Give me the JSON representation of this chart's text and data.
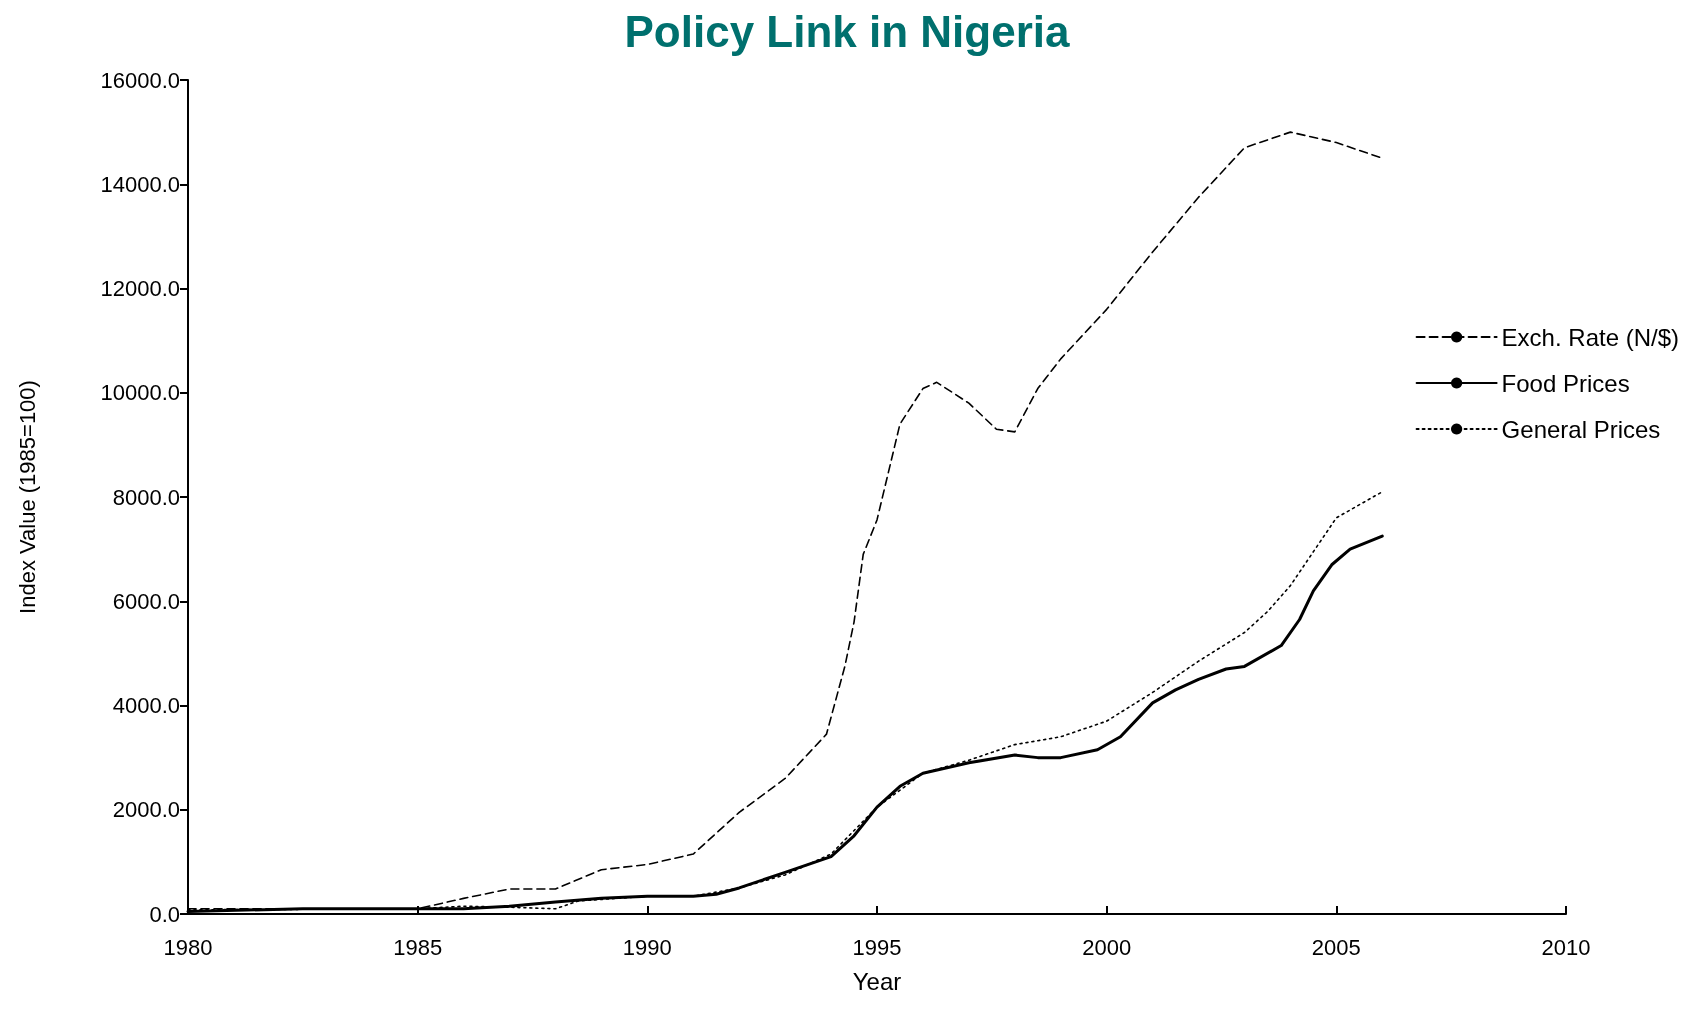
{
  "chart_data": {
    "type": "line",
    "title": "Policy Link in Nigeria",
    "xlabel": "Year",
    "ylabel": "Index Value (1985=100)",
    "xlim": [
      1980,
      2010
    ],
    "xticks": [
      1980,
      1985,
      1990,
      1995,
      2000,
      2005,
      2010
    ],
    "ylim": [
      0,
      16000
    ],
    "yticks": [
      {
        "value": 0,
        "label": "0.0"
      },
      {
        "value": 2000,
        "label": "2000.0"
      },
      {
        "value": 4000,
        "label": "4000.0"
      },
      {
        "value": 6000,
        "label": "6000.0"
      },
      {
        "value": 8000,
        "label": "8000.0"
      },
      {
        "value": 10000,
        "label": "10000.0"
      },
      {
        "value": 12000,
        "label": "12000.0"
      },
      {
        "value": 14000,
        "label": "14000.0"
      },
      {
        "value": 16000,
        "label": "16000.0"
      }
    ],
    "grid": false,
    "legend": "right",
    "marker": "none",
    "series": [
      {
        "name": "Exch. Rate (N/$)",
        "color": "#000000",
        "line_style": "dashed",
        "x": [
          1980,
          1985,
          1986,
          1987,
          1988,
          1989,
          1990,
          1991,
          1992,
          1993,
          1993.9,
          1994.3,
          1994.5,
          1994.7,
          1995,
          1995.5,
          1996,
          1996.3,
          1997,
          1997.6,
          1998,
          1998.5,
          1999,
          2000,
          2001,
          2002,
          2003,
          2004,
          2005,
          2006
        ],
        "values": [
          100,
          100,
          300,
          480,
          480,
          850,
          950,
          1150,
          1950,
          2600,
          3450,
          4750,
          5600,
          6900,
          7560,
          9400,
          10080,
          10200,
          9800,
          9300,
          9250,
          10080,
          10650,
          11600,
          12700,
          13750,
          14700,
          15000,
          14800,
          14500
        ]
      },
      {
        "name": "Food Prices",
        "color": "#000000",
        "line_style": "solid",
        "x": [
          1980,
          1982.5,
          1985,
          1986,
          1987,
          1988,
          1989,
          1990,
          1991,
          1991.5,
          1992,
          1993,
          1994,
          1994.5,
          1995,
          1995.5,
          1996,
          1996.5,
          1997,
          1998,
          1998.5,
          1999,
          1999.8,
          2000.3,
          2001,
          2001.5,
          2002,
          2002.6,
          2003,
          2003.8,
          2004.2,
          2004.5,
          2004.9,
          2005.3,
          2006
        ],
        "values": [
          50,
          100,
          100,
          100,
          150,
          230,
          300,
          340,
          340,
          380,
          500,
          800,
          1100,
          1500,
          2050,
          2450,
          2700,
          2800,
          2900,
          3050,
          3000,
          3000,
          3150,
          3400,
          4050,
          4300,
          4500,
          4700,
          4750,
          5150,
          5650,
          6200,
          6700,
          7000,
          7250
        ]
      },
      {
        "name": "General Prices",
        "color": "#000000",
        "line_style": "dotted",
        "x": [
          1980,
          1985,
          1986,
          1987,
          1988,
          1988.5,
          1990,
          1991,
          1992,
          1993,
          1994,
          1995,
          1996,
          1997,
          1998,
          1999,
          2000,
          2001,
          2002,
          2003,
          2003.5,
          2004,
          2005,
          2006
        ],
        "values": [
          80,
          100,
          150,
          130,
          100,
          250,
          340,
          340,
          500,
          750,
          1150,
          2050,
          2700,
          2950,
          3250,
          3400,
          3700,
          4250,
          4850,
          5400,
          5800,
          6300,
          7600,
          8100
        ]
      }
    ]
  }
}
